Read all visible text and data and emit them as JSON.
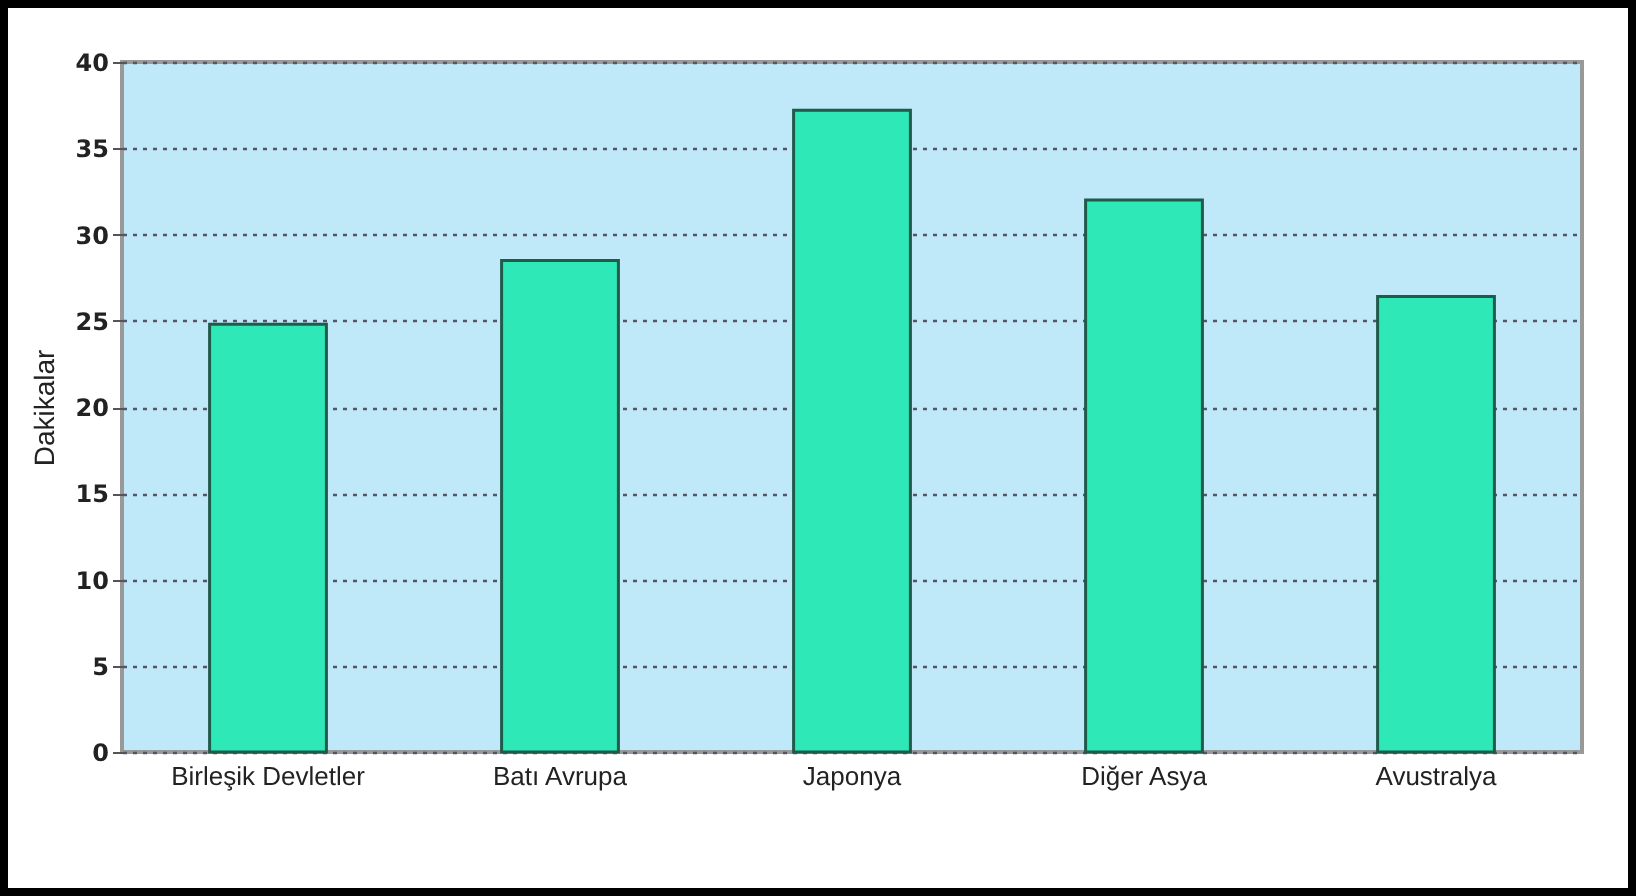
{
  "chart_data": {
    "type": "bar",
    "ylabel": "Dakikalar",
    "categories": [
      "Birleşik Devletler",
      "Batı Avrupa",
      "Japonya",
      "Diğer Asya",
      "Avustralya"
    ],
    "values": [
      24.8,
      28.5,
      37.2,
      32,
      26.4
    ],
    "color": "#2ee8b8",
    "ylim": [
      0,
      40
    ],
    "yticks": [
      0,
      5,
      10,
      15,
      20,
      25,
      30,
      35,
      40
    ],
    "grid": "y"
  }
}
